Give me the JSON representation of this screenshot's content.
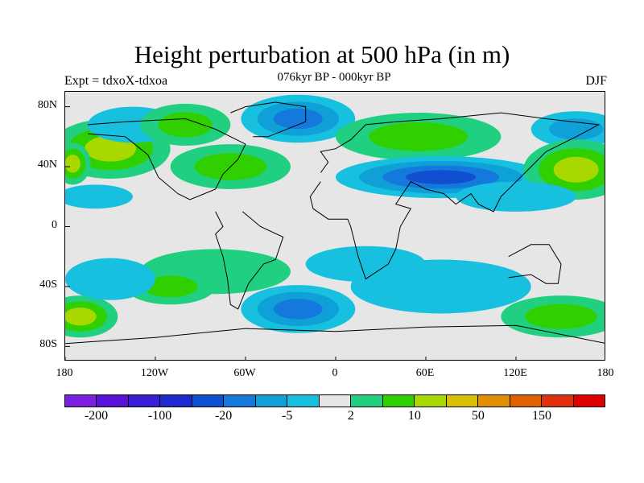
{
  "chart_data": {
    "type": "heatmap",
    "title": "Height perturbation at 500 hPa (in m)",
    "subtitle": "076kyr BP - 000kyr BP",
    "left_label": "Expt = tdxoX-tdxoa",
    "right_label": "DJF",
    "projection": "cylindrical equidistant",
    "xlim": [
      -180,
      180
    ],
    "ylim": [
      -90,
      90
    ],
    "lat_ticks": [
      {
        "value": 80,
        "label": "80N"
      },
      {
        "value": 40,
        "label": "40N"
      },
      {
        "value": 0,
        "label": "0"
      },
      {
        "value": -40,
        "label": "40S"
      },
      {
        "value": -80,
        "label": "80S"
      }
    ],
    "lon_ticks": [
      {
        "value": -180,
        "label": "180"
      },
      {
        "value": -120,
        "label": "120W"
      },
      {
        "value": -60,
        "label": "60W"
      },
      {
        "value": 0,
        "label": "0"
      },
      {
        "value": 60,
        "label": "60E"
      },
      {
        "value": 120,
        "label": "120E"
      },
      {
        "value": 180,
        "label": "180"
      }
    ],
    "colorbar": {
      "colors": [
        "#7b1fe0",
        "#5a12d8",
        "#3a20d4",
        "#1e2ad0",
        "#1050d0",
        "#1478dc",
        "#10a0d8",
        "#18c0e0",
        "#e6e6e6",
        "#20d080",
        "#30d000",
        "#a8d800",
        "#d8c000",
        "#e09000",
        "#e06000",
        "#e03010",
        "#e00000"
      ],
      "labels": [
        {
          "value": "-200",
          "boundary": 1
        },
        {
          "value": "-100",
          "boundary": 3
        },
        {
          "value": "-20",
          "boundary": 5
        },
        {
          "value": "-5",
          "boundary": 7
        },
        {
          "value": "2",
          "boundary": 9
        },
        {
          "value": "10",
          "boundary": 11
        },
        {
          "value": "50",
          "boundary": 13
        },
        {
          "value": "150",
          "boundary": 15
        }
      ]
    },
    "anomaly_regions": [
      {
        "lon": -150,
        "lat": 52,
        "rx": 40,
        "ry": 20,
        "level": 11
      },
      {
        "lon": -175,
        "lat": 42,
        "rx": 12,
        "ry": 14,
        "level": 11
      },
      {
        "lon": -135,
        "lat": 68,
        "rx": 30,
        "ry": 12,
        "level": 7
      },
      {
        "lon": -100,
        "lat": 68,
        "rx": 30,
        "ry": 14,
        "level": 10
      },
      {
        "lon": -70,
        "lat": 40,
        "rx": 40,
        "ry": 15,
        "level": 10
      },
      {
        "lon": -25,
        "lat": 72,
        "rx": 38,
        "ry": 16,
        "level": 5
      },
      {
        "lon": 55,
        "lat": 60,
        "rx": 55,
        "ry": 16,
        "level": 10
      },
      {
        "lon": 160,
        "lat": 65,
        "rx": 30,
        "ry": 12,
        "level": 6
      },
      {
        "lon": 70,
        "lat": 33,
        "rx": 70,
        "ry": 14,
        "level": 4
      },
      {
        "lon": 160,
        "lat": 38,
        "rx": 35,
        "ry": 20,
        "level": 11
      },
      {
        "lon": 120,
        "lat": 20,
        "rx": 40,
        "ry": 10,
        "level": 7
      },
      {
        "lon": -160,
        "lat": 20,
        "rx": 25,
        "ry": 8,
        "level": 7
      },
      {
        "lon": -80,
        "lat": -30,
        "rx": 50,
        "ry": 15,
        "level": 9
      },
      {
        "lon": -110,
        "lat": -40,
        "rx": 30,
        "ry": 12,
        "level": 10
      },
      {
        "lon": -25,
        "lat": -55,
        "rx": 38,
        "ry": 16,
        "level": 5
      },
      {
        "lon": 20,
        "lat": -25,
        "rx": 40,
        "ry": 12,
        "level": 7
      },
      {
        "lon": 70,
        "lat": -40,
        "rx": 60,
        "ry": 18,
        "level": 7
      },
      {
        "lon": 150,
        "lat": -60,
        "rx": 40,
        "ry": 14,
        "level": 10
      },
      {
        "lon": -170,
        "lat": -60,
        "rx": 25,
        "ry": 14,
        "level": 11
      },
      {
        "lon": -150,
        "lat": -35,
        "rx": 30,
        "ry": 14,
        "level": 7
      }
    ]
  }
}
